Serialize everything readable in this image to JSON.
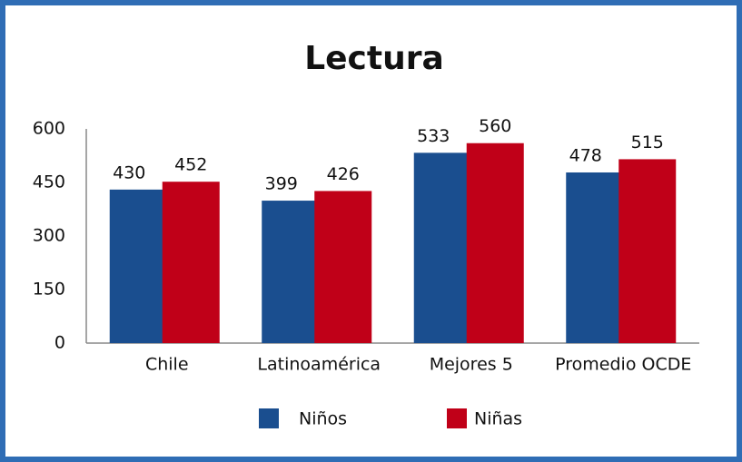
{
  "chart_data": {
    "type": "bar",
    "title": "Lectura",
    "categories": [
      "Chile",
      "Latinoamérica",
      "Mejores 5",
      "Promedio OCDE"
    ],
    "series": [
      {
        "name": "Niños",
        "color": "#1a4e8f",
        "values": [
          430,
          399,
          533,
          478
        ]
      },
      {
        "name": "Niñas",
        "color": "#c00018",
        "values": [
          452,
          426,
          560,
          515
        ]
      }
    ],
    "ylim": [
      0,
      600
    ],
    "yticks": [
      0,
      150,
      300,
      450,
      600
    ],
    "grid": false
  }
}
